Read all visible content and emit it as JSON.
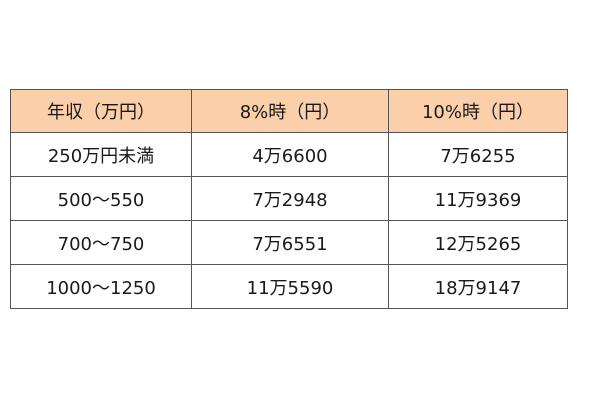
{
  "table": {
    "header_color": "#fbcfa9",
    "columns": [
      "年収（万円）",
      "8%時（円）",
      "10%時（円）"
    ],
    "rows": [
      [
        "250万円未満",
        "4万6600",
        "7万6255"
      ],
      [
        "500〜550",
        "7万2948",
        "11万9369"
      ],
      [
        "700〜750",
        "7万6551",
        "12万5265"
      ],
      [
        "1000〜1250",
        "11万5590",
        "18万9147"
      ]
    ]
  }
}
